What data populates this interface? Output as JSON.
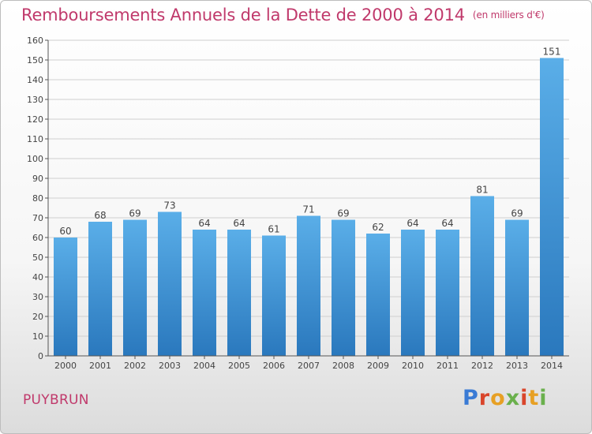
{
  "title": "Remboursements Annuels de la Dette de 2000 à 2014",
  "unit": "(en milliers d'€)",
  "town": "PUYBRUN",
  "logo": "Proxiti",
  "colors": {
    "title": "#c0396b",
    "bar_top": "#5aaee8",
    "bar_bottom": "#2a78bd",
    "grid": "#cccccc",
    "axis": "#555555"
  },
  "chart_data": {
    "type": "bar",
    "title": "Remboursements Annuels de la Dette de 2000 à 2014",
    "subtitle": "(en milliers d'€)",
    "xlabel": "",
    "ylabel": "",
    "categories": [
      "2000",
      "2001",
      "2002",
      "2003",
      "2004",
      "2005",
      "2006",
      "2007",
      "2008",
      "2009",
      "2010",
      "2011",
      "2012",
      "2013",
      "2014"
    ],
    "values": [
      60,
      68,
      69,
      73,
      64,
      64,
      61,
      71,
      69,
      62,
      64,
      64,
      81,
      69,
      151
    ],
    "ylim": [
      0,
      160
    ],
    "yticks": [
      0,
      10,
      20,
      30,
      40,
      50,
      60,
      70,
      80,
      90,
      100,
      110,
      120,
      130,
      140,
      150,
      160
    ],
    "grid": true,
    "data_labels": true
  }
}
